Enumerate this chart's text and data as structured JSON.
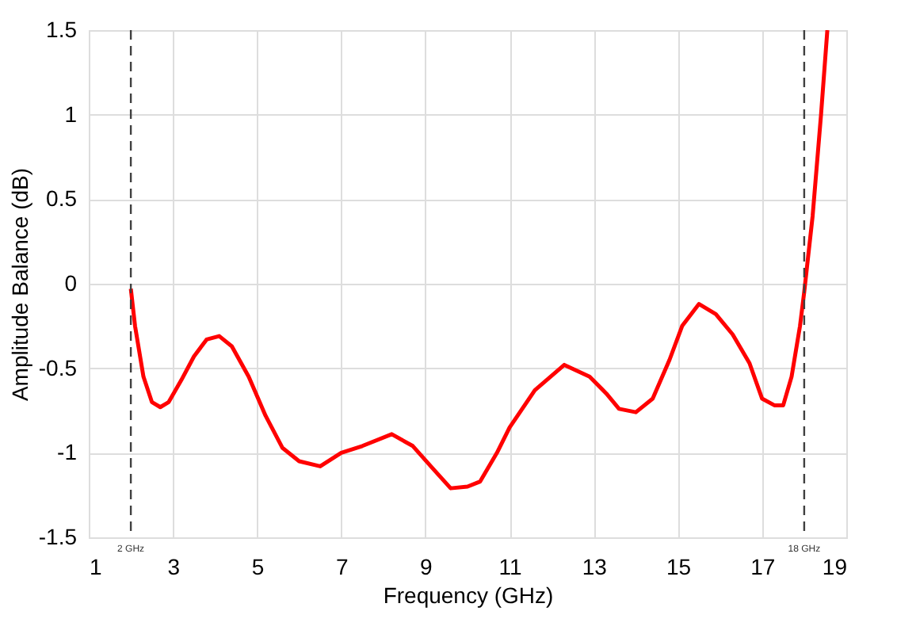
{
  "chart_data": {
    "type": "line",
    "xlabel": "Frequency (GHz)",
    "ylabel": "Amplitude Balance (dB)",
    "x": [
      2.0,
      2.1,
      2.3,
      2.5,
      2.7,
      2.9,
      3.2,
      3.5,
      3.8,
      4.1,
      4.4,
      4.8,
      5.2,
      5.6,
      6.0,
      6.5,
      7.0,
      7.5,
      8.2,
      8.7,
      9.2,
      9.6,
      10.0,
      10.3,
      10.7,
      11.0,
      11.6,
      12.3,
      12.9,
      13.3,
      13.6,
      14.0,
      14.4,
      14.8,
      15.1,
      15.5,
      15.9,
      16.3,
      16.7,
      17.0,
      17.3,
      17.5,
      17.7,
      17.9,
      18.0,
      18.2,
      18.4,
      18.55
    ],
    "series": [
      {
        "color": "#ff0000",
        "values": [
          -0.03,
          -0.25,
          -0.55,
          -0.7,
          -0.73,
          -0.7,
          -0.57,
          -0.43,
          -0.33,
          -0.31,
          -0.37,
          -0.55,
          -0.78,
          -0.97,
          -1.05,
          -1.08,
          -1.0,
          -0.96,
          -0.89,
          -0.96,
          -1.1,
          -1.21,
          -1.2,
          -1.17,
          -1.0,
          -0.85,
          -0.63,
          -0.48,
          -0.55,
          -0.65,
          -0.74,
          -0.76,
          -0.68,
          -0.45,
          -0.25,
          -0.12,
          -0.18,
          -0.3,
          -0.47,
          -0.68,
          -0.72,
          -0.72,
          -0.55,
          -0.25,
          -0.05,
          0.4,
          1.0,
          1.5
        ]
      }
    ],
    "xlim": [
      1,
      19
    ],
    "xticks": [
      1,
      3,
      5,
      7,
      9,
      11,
      13,
      15,
      17,
      19
    ],
    "ylim": [
      -1.5,
      1.5
    ],
    "yticks": [
      -1.5,
      -1,
      -0.5,
      0,
      0.5,
      1,
      1.5
    ],
    "grid": true,
    "line_style": "solid",
    "marker": "none",
    "ref_lines": [
      {
        "axis": "x",
        "value": 2,
        "label": "2 GHz",
        "color": "#404040",
        "line_style": "dashed"
      },
      {
        "axis": "x",
        "value": 18,
        "label": "18 GHz",
        "color": "#404040",
        "line_style": "dashed"
      }
    ]
  }
}
